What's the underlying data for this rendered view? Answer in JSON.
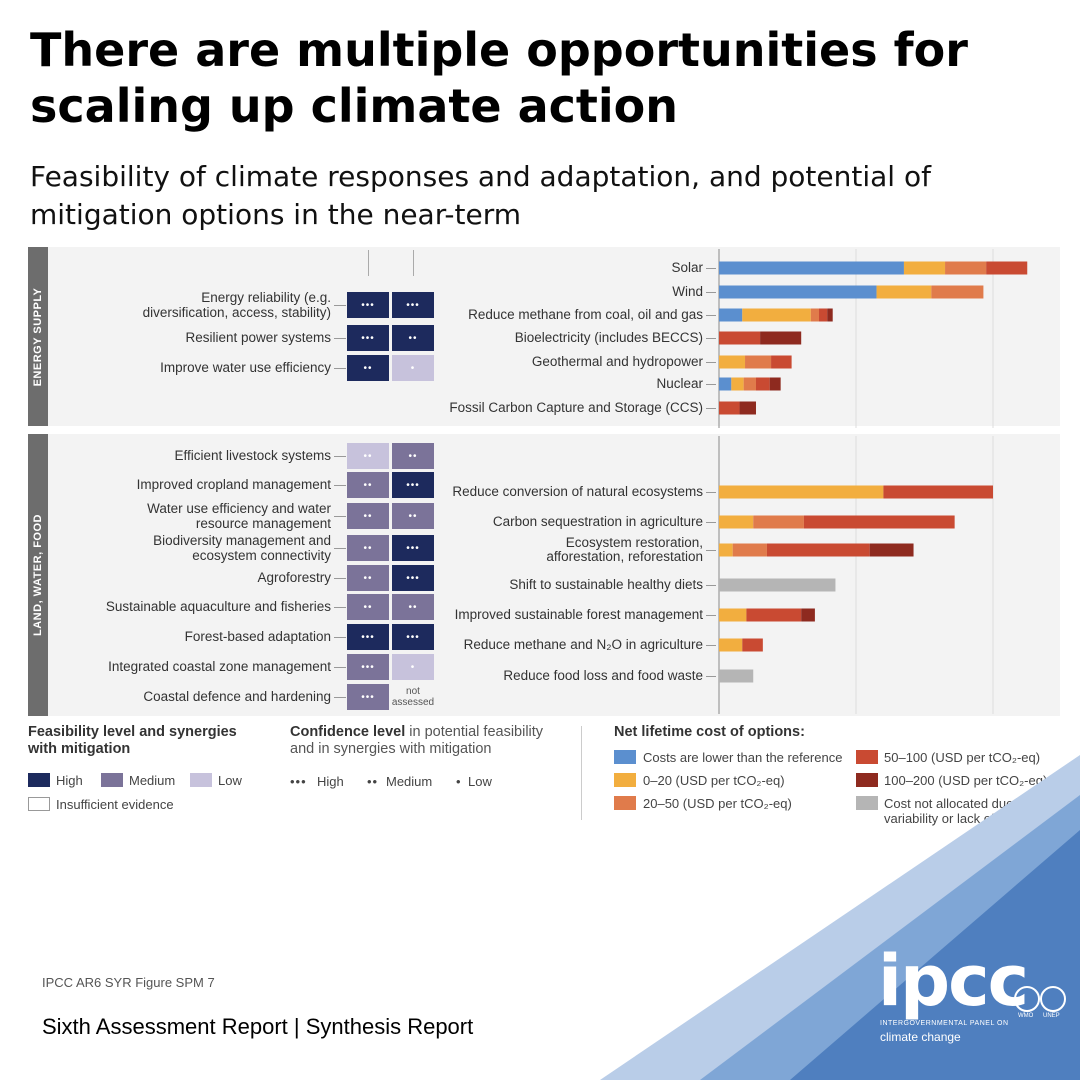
{
  "title": "There are multiple opportunities for scaling up climate action",
  "subtitle": "Feasibility of climate responses and adaptation, and potential of mitigation options in the near-term",
  "sections": {
    "energy": "ENERGY SUPPLY",
    "land": "LAND, WATER, FOOD"
  },
  "feasibility_rows": [
    {
      "label": "Energy reliability (e.g. diversification, access, stability)",
      "feasibility": "high",
      "feas_conf": "•••",
      "synergy": "high",
      "syn_conf": "•••"
    },
    {
      "label": "Resilient power systems",
      "feasibility": "high",
      "feas_conf": "•••",
      "synergy": "high",
      "syn_conf": "••"
    },
    {
      "label": "Improve water use efficiency",
      "feasibility": "high",
      "feas_conf": "••",
      "synergy": "low",
      "syn_conf": "•"
    },
    {
      "label": "Efficient livestock systems",
      "feasibility": "low",
      "feas_conf": "••",
      "synergy": "medium",
      "syn_conf": "••"
    },
    {
      "label": "Improved cropland management",
      "feasibility": "medium",
      "feas_conf": "••",
      "synergy": "high",
      "syn_conf": "•••"
    },
    {
      "label": "Water use efficiency and water resource management",
      "feasibility": "medium",
      "feas_conf": "••",
      "synergy": "medium",
      "syn_conf": "••"
    },
    {
      "label": "Biodiversity management and ecosystem connectivity",
      "feasibility": "medium",
      "feas_conf": "••",
      "synergy": "high",
      "syn_conf": "•••"
    },
    {
      "label": "Agroforestry",
      "feasibility": "medium",
      "feas_conf": "••",
      "synergy": "high",
      "syn_conf": "•••"
    },
    {
      "label": "Sustainable aquaculture and fisheries",
      "feasibility": "medium",
      "feas_conf": "••",
      "synergy": "medium",
      "syn_conf": "••"
    },
    {
      "label": "Forest-based adaptation",
      "feasibility": "high",
      "feas_conf": "•••",
      "synergy": "high",
      "syn_conf": "•••"
    },
    {
      "label": "Integrated coastal zone management",
      "feasibility": "medium",
      "feas_conf": "•••",
      "synergy": "low",
      "syn_conf": "•"
    },
    {
      "label": "Coastal defence and hardening",
      "feasibility": "medium",
      "feas_conf": "•••",
      "synergy": "na",
      "syn_conf": "not assessed"
    }
  ],
  "chart_data": {
    "type": "bar",
    "orientation": "horizontal-stacked",
    "xlim": [
      0,
      5
    ],
    "grid": true,
    "cost_categories": [
      "lower",
      "0-20",
      "20-50",
      "50-100",
      "100-200",
      "na"
    ],
    "colors": {
      "lower": "#5b8fcf",
      "0-20": "#f2ae3f",
      "20-50": "#e07b4b",
      "50-100": "#c94a32",
      "100-200": "#8e2a1f",
      "na": "#b5b5b5"
    },
    "categories": [
      "Solar",
      "Wind",
      "Reduce methane from coal, oil and gas",
      "Bioelectricity (includes BECCS)",
      "Geothermal and hydropower",
      "Nuclear",
      "Fossil Carbon Capture and Storage (CCS)",
      "Reduce conversion of natural ecosystems",
      "Carbon sequestration in agriculture",
      "Ecosystem restoration, afforestation, reforestation",
      "Shift to sustainable healthy diets",
      "Improved sustainable forest management",
      "Reduce methane and N₂O in agriculture",
      "Reduce food loss and food waste"
    ],
    "segments": [
      [
        {
          "c": "lower",
          "v": 1.35
        },
        {
          "c": "0-20",
          "v": 0.3
        },
        {
          "c": "20-50",
          "v": 0.3
        },
        {
          "c": "50-100",
          "v": 0.3
        }
      ],
      [
        {
          "c": "lower",
          "v": 1.15
        },
        {
          "c": "0-20",
          "v": 0.4
        },
        {
          "c": "20-50",
          "v": 0.38
        }
      ],
      [
        {
          "c": "lower",
          "v": 0.17
        },
        {
          "c": "0-20",
          "v": 0.5
        },
        {
          "c": "20-50",
          "v": 0.06
        },
        {
          "c": "50-100",
          "v": 0.06
        },
        {
          "c": "100-200",
          "v": 0.04
        }
      ],
      [
        {
          "c": "50-100",
          "v": 0.3
        },
        {
          "c": "100-200",
          "v": 0.3
        }
      ],
      [
        {
          "c": "0-20",
          "v": 0.19
        },
        {
          "c": "20-50",
          "v": 0.19
        },
        {
          "c": "50-100",
          "v": 0.15
        }
      ],
      [
        {
          "c": "lower",
          "v": 0.09
        },
        {
          "c": "0-20",
          "v": 0.09
        },
        {
          "c": "20-50",
          "v": 0.09
        },
        {
          "c": "50-100",
          "v": 0.1
        },
        {
          "c": "100-200",
          "v": 0.08
        }
      ],
      [
        {
          "c": "50-100",
          "v": 0.15
        },
        {
          "c": "100-200",
          "v": 0.12
        }
      ],
      [
        {
          "c": "0-20",
          "v": 1.2
        },
        {
          "c": "50-100",
          "v": 0.8
        }
      ],
      [
        {
          "c": "0-20",
          "v": 0.25
        },
        {
          "c": "20-50",
          "v": 0.37
        },
        {
          "c": "50-100",
          "v": 1.1
        }
      ],
      [
        {
          "c": "0-20",
          "v": 0.1
        },
        {
          "c": "20-50",
          "v": 0.25
        },
        {
          "c": "50-100",
          "v": 0.75
        },
        {
          "c": "100-200",
          "v": 0.32
        }
      ],
      [
        {
          "c": "na",
          "v": 0.85
        }
      ],
      [
        {
          "c": "0-20",
          "v": 0.2
        },
        {
          "c": "50-100",
          "v": 0.4
        },
        {
          "c": "100-200",
          "v": 0.1
        }
      ],
      [
        {
          "c": "0-20",
          "v": 0.17
        },
        {
          "c": "50-100",
          "v": 0.15
        }
      ],
      [
        {
          "c": "na",
          "v": 0.25
        }
      ]
    ]
  },
  "legend": {
    "feasibility_title": "Feasibility level and synergies",
    "feasibility_title2": "with mitigation",
    "high": "High",
    "medium": "Medium",
    "low": "Low",
    "insufficient": "Insufficient evidence",
    "confidence_title_bold": "Confidence level",
    "confidence_title_rest": " in potential feasibility",
    "confidence_title2": "and in synergies with mitigation",
    "conf_high_dots": "•••",
    "conf_high": "High",
    "conf_med_dots": "••",
    "conf_med": "Medium",
    "conf_low_dots": "•",
    "conf_low": "Low",
    "cost_title": "Net lifetime cost of options:",
    "cost_lower": "Costs are lower than the reference",
    "cost_0_20": "0–20 (USD per tCO₂-eq)",
    "cost_20_50": "20–50 (USD per tCO₂-eq)",
    "cost_50_100": "50–100 (USD per tCO₂-eq)",
    "cost_100_200": "100–200 (USD per tCO₂-eq)",
    "cost_na_1": "Cost not allocated due to high",
    "cost_na_2": "variability or lack of data"
  },
  "source": "IPCC AR6 SYR Figure SPM 7",
  "report": "Sixth Assessment Report | Synthesis Report",
  "logo": {
    "name": "ipcc",
    "line1": "INTERGOVERNMENTAL PANEL ON",
    "line2": "climate change",
    "emblem1": "WMO",
    "emblem2": "UNEP"
  }
}
